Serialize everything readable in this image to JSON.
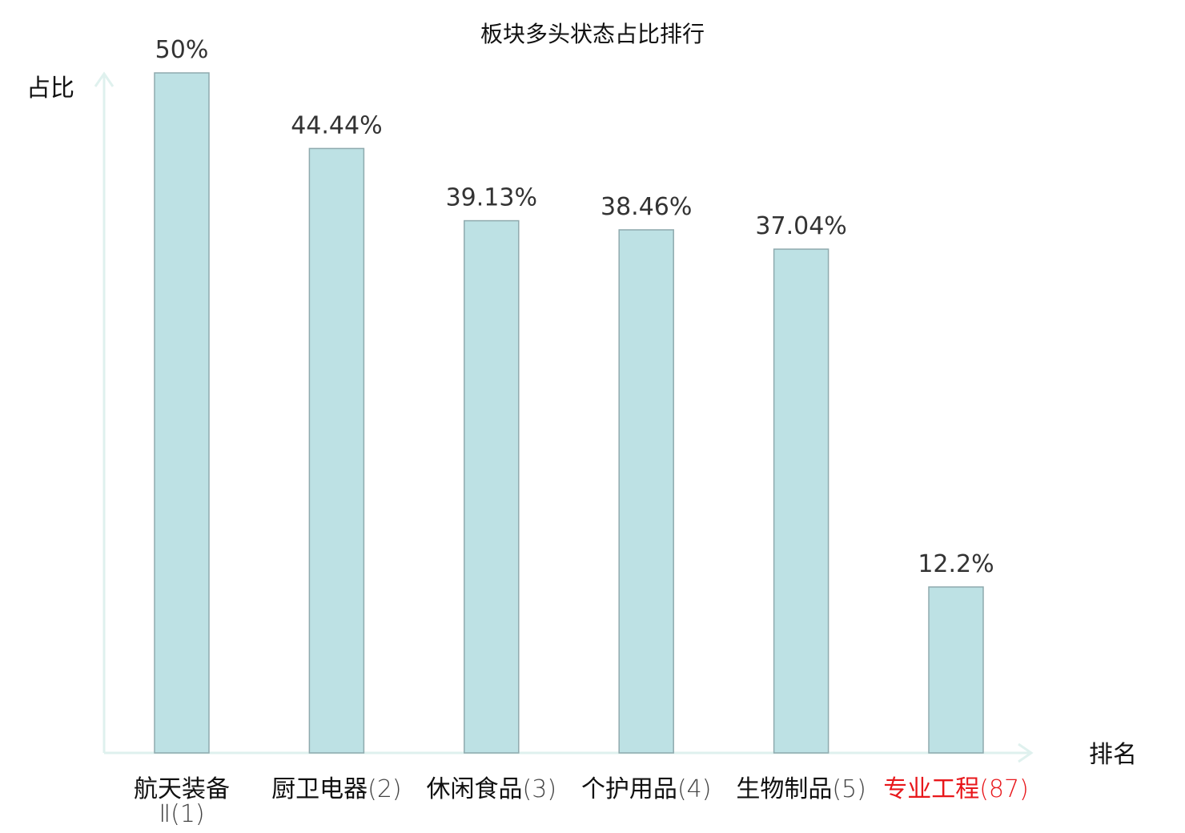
{
  "chart_data": {
    "type": "bar",
    "title": "板块多头状态占比排行",
    "ylabel": "占比",
    "xlabel": "排名",
    "ylim": [
      0,
      50
    ],
    "grid": false,
    "categories": [
      {
        "name": "航天装备",
        "name2": "Ⅱ",
        "rank": "(1)",
        "highlight": false
      },
      {
        "name": "厨卫电器",
        "rank": "(2)",
        "highlight": false
      },
      {
        "name": "休闲食品",
        "rank": "(3)",
        "highlight": false
      },
      {
        "name": "个护用品",
        "rank": "(4)",
        "highlight": false
      },
      {
        "name": "生物制品",
        "rank": "(5)",
        "highlight": false
      },
      {
        "name": "专业工程",
        "rank": "(87)",
        "highlight": true
      }
    ],
    "values": [
      50,
      44.44,
      39.13,
      38.46,
      37.04,
      12.2
    ],
    "value_labels": [
      "50%",
      "44.44%",
      "39.13%",
      "38.46%",
      "37.04%",
      "12.2%"
    ],
    "colors": {
      "bar_fill": "#bde1e4",
      "bar_stroke": "#8faaae",
      "axis": "#dff1ee",
      "highlight": "#e8171b"
    }
  }
}
